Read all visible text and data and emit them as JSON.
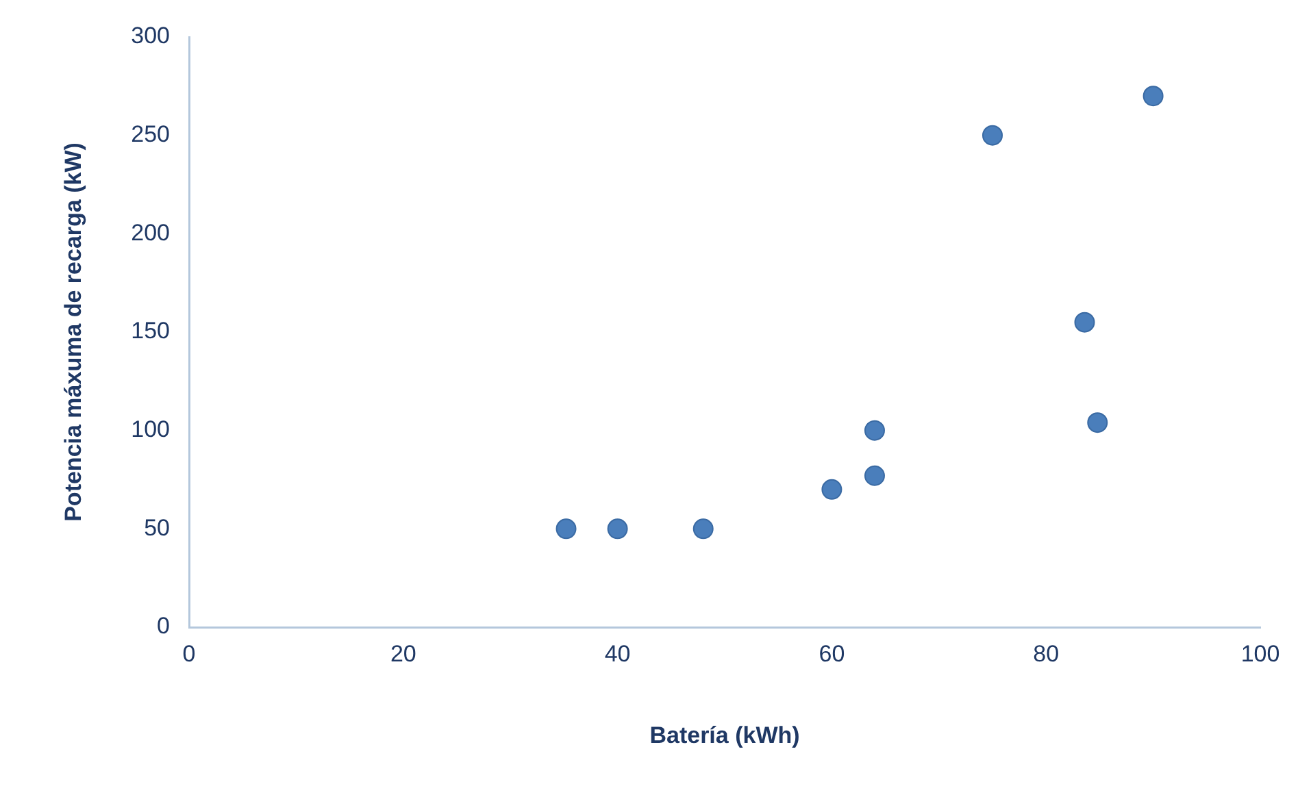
{
  "chart_data": {
    "type": "scatter",
    "xlabel": "Batería (kWh)",
    "ylabel": "Potencia máxuma de recarga (kW)",
    "x": [
      35.2,
      40,
      48,
      60,
      64,
      64,
      75,
      83.6,
      84.8,
      90
    ],
    "values": [
      50,
      50,
      50,
      70,
      100,
      77,
      250,
      155,
      104,
      270
    ],
    "color": "#4a7ebb",
    "marker": "circle",
    "grid": false,
    "legend": false,
    "xlim": [
      0,
      100
    ],
    "xticks": [
      0,
      20,
      40,
      60,
      80,
      100
    ],
    "ylim": [
      0,
      300
    ],
    "yticks": [
      0,
      50,
      100,
      150,
      200,
      250,
      300
    ]
  }
}
